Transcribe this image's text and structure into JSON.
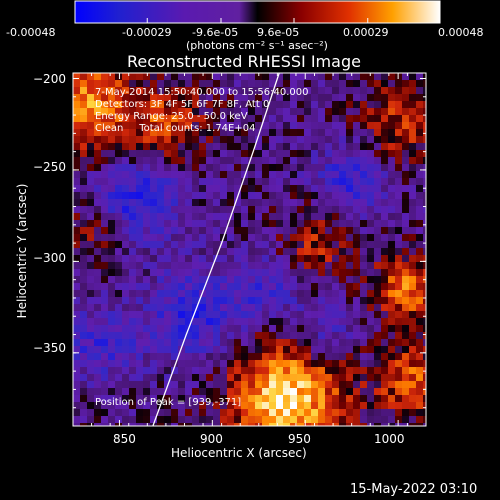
{
  "colorbar": {
    "tick_labels": [
      "-0.00048",
      "-0.00029",
      "-9.6e-05",
      "9.6e-05",
      "0.00029",
      "0.00048"
    ],
    "tick_values": [
      -0.00048,
      -0.00029,
      -9.6e-05,
      9.6e-05,
      0.00029,
      0.00048
    ],
    "range": [
      -0.00048,
      0.00048
    ],
    "units_label": "(photons cm⁻² s⁻¹ asec⁻²)"
  },
  "chart_data": {
    "type": "heatmap",
    "title": "Reconstructed RHESSI Image",
    "xlabel": "Heliocentric X (arcsec)",
    "ylabel": "Heliocentric Y (arcsec)",
    "xlim": [
      825,
      1015
    ],
    "ylim": [
      -390,
      -197
    ],
    "x_ticks": [
      850,
      900,
      950,
      1000
    ],
    "x_tick_labels": [
      "850",
      "900",
      "950",
      "1000"
    ],
    "y_ticks": [
      -200,
      -250,
      -300,
      -350
    ],
    "y_tick_labels": [
      "−200",
      "−250",
      "−300",
      "−350"
    ],
    "limb_curve": [
      [
        868,
        -390
      ],
      [
        886,
        -340
      ],
      [
        905,
        -290
      ],
      [
        922,
        -240
      ],
      [
        936,
        -197
      ]
    ],
    "peak": [
      939,
      -371
    ],
    "hot_regions": [
      {
        "x": 940,
        "y": -375,
        "level": 1.0,
        "spread": 22
      },
      {
        "x": 832,
        "y": -215,
        "level": 0.75,
        "spread": 18
      },
      {
        "x": 875,
        "y": -225,
        "level": 0.5,
        "spread": 16
      },
      {
        "x": 1005,
        "y": -315,
        "level": 0.65,
        "spread": 14
      },
      {
        "x": 1008,
        "y": -365,
        "level": 0.6,
        "spread": 14
      },
      {
        "x": 955,
        "y": -290,
        "level": 0.4,
        "spread": 14
      },
      {
        "x": 835,
        "y": -285,
        "level": 0.3,
        "spread": 12
      },
      {
        "x": 1000,
        "y": -225,
        "level": 0.45,
        "spread": 16
      }
    ],
    "cold_regions": [
      {
        "x": 860,
        "y": -265,
        "level": 0.55,
        "spread": 16
      },
      {
        "x": 890,
        "y": -330,
        "level": 0.5,
        "spread": 18
      },
      {
        "x": 930,
        "y": -315,
        "level": 0.35,
        "spread": 14
      },
      {
        "x": 975,
        "y": -255,
        "level": 0.45,
        "spread": 14
      },
      {
        "x": 840,
        "y": -345,
        "level": 0.4,
        "spread": 14
      },
      {
        "x": 960,
        "y": -340,
        "level": 0.35,
        "spread": 12
      }
    ]
  },
  "annotations": {
    "time": "7-May-2014 15:50:40.000 to 15:56:40.000",
    "detectors": "Detectors: 3F 4F 5F 6F 7F 8F, Att 0",
    "energy": "Energy Range: 25.0 - 50.0 keV",
    "clean": "Clean     Total counts: 1.74E+04",
    "peak": "Position of Peak = [939,-371]"
  },
  "footer_timestamp": "15-May-2022 03:10",
  "colors": {
    "background": "#000000",
    "text": "#ffffff",
    "limb": "#ffffff"
  }
}
